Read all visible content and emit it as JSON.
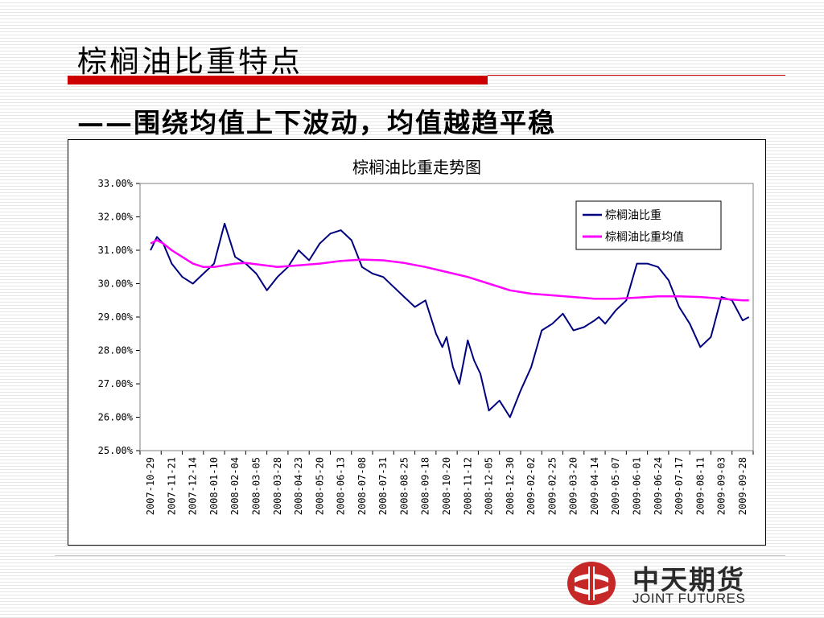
{
  "slide": {
    "title": "棕榈油比重特点",
    "subtitle": "——围绕均值上下波动，均值越趋平稳"
  },
  "logo": {
    "name_cn": "中天期货",
    "name_en": "JOINT FUTURES"
  },
  "colors": {
    "title_rule": "#cc0000",
    "series_main": "#000080",
    "series_avg": "#ff00ff",
    "logo_red": "#c62828"
  },
  "chart_data": {
    "type": "line",
    "title": "棕榈油比重走势图",
    "y_tick_labels": [
      "25.00%",
      "26.00%",
      "27.00%",
      "28.00%",
      "29.00%",
      "30.00%",
      "31.00%",
      "32.00%",
      "33.00%"
    ],
    "ylim": [
      25,
      33
    ],
    "x_tick_labels": [
      "2007-10-29",
      "2007-11-21",
      "2007-12-14",
      "2008-01-10",
      "2008-02-04",
      "2008-03-05",
      "2008-03-28",
      "2008-04-23",
      "2008-05-20",
      "2008-06-13",
      "2008-07-08",
      "2008-07-31",
      "2008-08-25",
      "2008-09-18",
      "2008-10-20",
      "2008-11-12",
      "2008-12-05",
      "2008-12-30",
      "2009-02-02",
      "2009-02-25",
      "2009-03-20",
      "2009-04-14",
      "2009-05-07",
      "2009-06-01",
      "2009-06-24",
      "2009-07-17",
      "2009-08-11",
      "2009-09-03",
      "2009-09-28"
    ],
    "grid": false,
    "legend_position": "top-right",
    "series": [
      {
        "name": "棕榈油比重",
        "color": "#000080",
        "x": [
          0,
          0.3,
          0.6,
          1,
          1.5,
          2,
          2.5,
          3,
          3.5,
          4,
          4.5,
          5,
          5.5,
          6,
          6.5,
          7,
          7.5,
          8,
          8.5,
          9,
          9.5,
          10,
          10.5,
          11,
          11.5,
          12,
          12.5,
          13,
          13.5,
          13.8,
          14,
          14.3,
          14.6,
          15,
          15.3,
          15.6,
          16,
          16.5,
          17,
          17.5,
          18,
          18.5,
          19,
          19.5,
          20,
          20.5,
          21,
          21.2,
          21.5,
          22,
          22.5,
          23,
          23.5,
          24,
          24.5,
          25,
          25.5,
          26,
          26.5,
          27,
          27.5,
          28,
          28.3
        ],
        "y": [
          31.0,
          31.4,
          31.2,
          30.6,
          30.2,
          30.0,
          30.3,
          30.6,
          31.8,
          30.8,
          30.6,
          30.3,
          29.8,
          30.2,
          30.5,
          31.0,
          30.7,
          31.2,
          31.5,
          31.6,
          31.3,
          30.5,
          30.3,
          30.2,
          29.9,
          29.6,
          29.3,
          29.5,
          28.5,
          28.1,
          28.4,
          27.5,
          27.0,
          28.3,
          27.7,
          27.3,
          26.2,
          26.5,
          26.0,
          26.8,
          27.5,
          28.6,
          28.8,
          29.1,
          28.6,
          28.7,
          28.9,
          29.0,
          28.8,
          29.2,
          29.5,
          30.6,
          30.6,
          30.5,
          30.1,
          29.3,
          28.8,
          28.1,
          28.4,
          29.6,
          29.5,
          28.9,
          29.0
        ]
      },
      {
        "name": "棕榈油比重均值",
        "color": "#ff00ff",
        "x": [
          0,
          0.3,
          0.6,
          1,
          1.5,
          2,
          2.5,
          3,
          3.5,
          4,
          4.5,
          5,
          6,
          7,
          8,
          9,
          10,
          11,
          12,
          13,
          14,
          15,
          16,
          17,
          18,
          19,
          20,
          21,
          22,
          23,
          24,
          25,
          26,
          27,
          28,
          28.3
        ],
        "y": [
          31.2,
          31.3,
          31.2,
          31.0,
          30.8,
          30.6,
          30.5,
          30.5,
          30.55,
          30.6,
          30.62,
          30.58,
          30.5,
          30.55,
          30.6,
          30.68,
          30.72,
          30.7,
          30.62,
          30.5,
          30.35,
          30.2,
          30.0,
          29.8,
          29.7,
          29.65,
          29.6,
          29.55,
          29.55,
          29.58,
          29.62,
          29.62,
          29.6,
          29.55,
          29.5,
          29.5
        ]
      }
    ]
  }
}
